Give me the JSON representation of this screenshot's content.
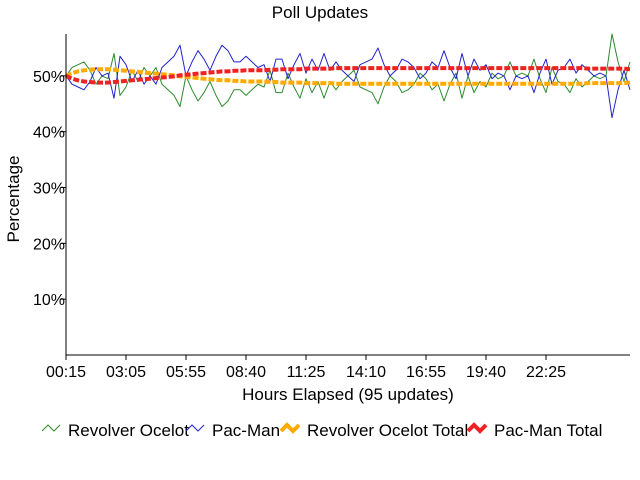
{
  "chart_data": {
    "type": "line",
    "title": "Poll Updates",
    "xlabel": "Hours Elapsed (95 updates)",
    "ylabel": "Percentage",
    "x_ticks": [
      "00:15",
      "03:05",
      "05:55",
      "08:40",
      "11:25",
      "14:10",
      "16:55",
      "19:40",
      "22:25"
    ],
    "x_tick_index": [
      0,
      10,
      20,
      30,
      40,
      50,
      60,
      70,
      80
    ],
    "y_ticks": [
      10,
      20,
      30,
      40,
      50
    ],
    "y_tick_labels": [
      "10%",
      "20%",
      "30%",
      "40%",
      "50%"
    ],
    "ylim": [
      0,
      57.5
    ],
    "n_points": 95,
    "legend_position": "bottom",
    "series": [
      {
        "name": "Revolver Ocelot",
        "color": "#2e8b2e",
        "values": [
          50,
          51.5,
          52,
          52.5,
          51,
          48.5,
          50,
          49.5,
          54,
          46.5,
          48,
          51,
          49,
          51.5,
          50,
          51.5,
          48.5,
          47.5,
          46.5,
          44.5,
          50,
          47.5,
          45.5,
          47,
          49,
          46.5,
          44.5,
          45.5,
          47.5,
          47.5,
          46.5,
          47.5,
          48.5,
          48,
          51,
          47,
          47,
          50.5,
          48,
          46,
          49.5,
          47,
          49,
          46,
          49,
          47.5,
          49,
          50,
          51,
          48,
          47.5,
          47,
          45,
          48,
          50,
          49,
          47,
          47.5,
          48.5,
          50.5,
          49.5,
          47.5,
          48.5,
          45.5,
          48.5,
          50.5,
          46,
          50,
          47,
          49,
          48,
          50.5,
          49.5,
          50,
          52.5,
          50,
          50.5,
          50,
          53,
          49.5,
          47,
          51.5,
          49,
          48.5,
          47,
          49.5,
          48,
          49,
          50,
          49.5,
          50,
          57.5,
          52.5,
          49,
          52.5
        ]
      },
      {
        "name": "Pac-Man",
        "color": "#2222cc",
        "values": [
          50,
          48.5,
          48,
          47.5,
          49,
          51.5,
          50,
          50.5,
          46,
          53.5,
          52,
          49,
          51,
          48.5,
          50,
          48.5,
          51.5,
          52.5,
          53.5,
          55.5,
          50,
          52.5,
          54.5,
          53,
          51,
          53.5,
          55.5,
          54.5,
          52.5,
          52.5,
          53.5,
          52.5,
          51.5,
          52,
          49,
          53,
          53,
          49.5,
          52,
          54,
          50.5,
          53,
          51,
          54,
          51,
          52.5,
          51,
          50,
          49,
          52,
          52.5,
          53,
          55,
          52,
          50,
          51,
          53,
          52.5,
          51.5,
          49.5,
          50.5,
          52.5,
          51.5,
          54.5,
          51.5,
          49.5,
          54,
          50,
          53,
          51,
          52,
          49.5,
          50.5,
          50,
          47.5,
          50,
          49.5,
          50,
          47,
          50.5,
          53,
          48.5,
          51,
          51.5,
          53,
          50.5,
          52,
          51,
          50,
          50.5,
          50,
          42.5,
          47.5,
          51,
          47.5
        ]
      },
      {
        "name": "Revolver Ocelot Total",
        "color": "#ffaa00",
        "values": [
          50,
          50.5,
          50.8,
          51,
          51.1,
          51.2,
          51.2,
          51.2,
          51.1,
          51,
          50.9,
          50.8,
          50.7,
          50.6,
          50.5,
          50.4,
          50.3,
          50.2,
          50.1,
          49.9,
          49.8,
          49.7,
          49.6,
          49.5,
          49.4,
          49.3,
          49.2,
          49.2,
          49.1,
          49.1,
          49,
          49,
          49,
          49,
          48.9,
          48.9,
          48.8,
          48.8,
          48.8,
          48.8,
          48.7,
          48.7,
          48.7,
          48.7,
          48.7,
          48.6,
          48.6,
          48.6,
          48.6,
          48.6,
          48.6,
          48.6,
          48.6,
          48.6,
          48.6,
          48.6,
          48.6,
          48.6,
          48.6,
          48.6,
          48.6,
          48.6,
          48.6,
          48.6,
          48.6,
          48.6,
          48.6,
          48.6,
          48.6,
          48.6,
          48.6,
          48.6,
          48.6,
          48.6,
          48.6,
          48.6,
          48.6,
          48.6,
          48.6,
          48.6,
          48.6,
          48.6,
          48.6,
          48.6,
          48.6,
          48.6,
          48.6,
          48.7,
          48.7,
          48.7,
          48.7,
          48.7,
          48.7,
          48.7,
          48.8
        ]
      },
      {
        "name": "Pac-Man Total",
        "color": "#ee2222",
        "values": [
          50,
          49.5,
          49.2,
          49,
          48.9,
          48.8,
          48.8,
          48.8,
          48.9,
          49,
          49.1,
          49.2,
          49.3,
          49.4,
          49.5,
          49.6,
          49.7,
          49.8,
          49.9,
          50.1,
          50.2,
          50.3,
          50.4,
          50.5,
          50.6,
          50.7,
          50.8,
          50.8,
          50.9,
          50.9,
          51,
          51,
          51,
          51,
          51.1,
          51.1,
          51.2,
          51.2,
          51.2,
          51.2,
          51.3,
          51.3,
          51.3,
          51.3,
          51.3,
          51.4,
          51.4,
          51.4,
          51.4,
          51.4,
          51.4,
          51.4,
          51.4,
          51.4,
          51.4,
          51.4,
          51.4,
          51.4,
          51.4,
          51.4,
          51.4,
          51.4,
          51.4,
          51.4,
          51.4,
          51.4,
          51.4,
          51.4,
          51.4,
          51.4,
          51.4,
          51.4,
          51.4,
          51.4,
          51.4,
          51.4,
          51.4,
          51.4,
          51.4,
          51.4,
          51.4,
          51.4,
          51.4,
          51.4,
          51.4,
          51.4,
          51.4,
          51.3,
          51.3,
          51.3,
          51.3,
          51.3,
          51.3,
          51.3,
          51.2
        ]
      }
    ]
  }
}
